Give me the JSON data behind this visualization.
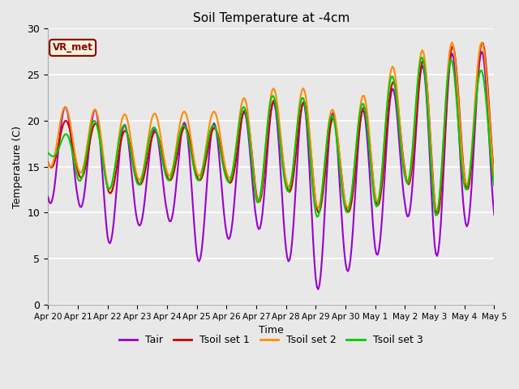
{
  "title": "Soil Temperature at -4cm",
  "xlabel": "Time",
  "ylabel": "Temperature (C)",
  "ylim": [
    0,
    30
  ],
  "background_color": "#e8e8e8",
  "plot_bg_color": "#e8e8e8",
  "grid_color": "#ffffff",
  "label_box_text": "VR_met",
  "label_box_bg": "#f5f5dc",
  "label_box_edge": "#8B0000",
  "series_colors": {
    "Tair": "#9900CC",
    "Tsoil_set1": "#CC0000",
    "Tsoil_set2": "#FF8C00",
    "Tsoil_set3": "#00CC00"
  },
  "legend_labels": [
    "Tair",
    "Tsoil set 1",
    "Tsoil set 2",
    "Tsoil set 3"
  ],
  "xtick_labels": [
    "Apr 20",
    "Apr 21",
    "Apr 22",
    "Apr 23",
    "Apr 24",
    "Apr 25",
    "Apr 26",
    "Apr 27",
    "Apr 28",
    "Apr 29",
    "Apr 30",
    "May 1",
    "May 2",
    "May 3",
    "May 4",
    "May 5"
  ],
  "line_width": 1.5,
  "figsize": [
    6.4,
    4.8
  ],
  "dpi": 100
}
